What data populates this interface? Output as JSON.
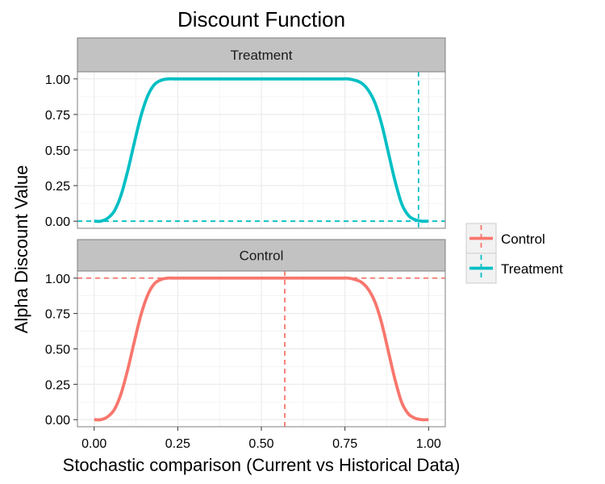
{
  "chart_data": {
    "type": "line",
    "title": "Discount Function",
    "xlabel": "Stochastic comparison (Current vs Historical Data)",
    "ylabel": "Alpha Discount Value",
    "xlim": [
      -0.05,
      1.05
    ],
    "ylim": [
      -0.05,
      1.05
    ],
    "x_ticks": [
      "0.00",
      "0.25",
      "0.50",
      "0.75",
      "1.00"
    ],
    "y_ticks": [
      "0.00",
      "0.25",
      "0.50",
      "0.75",
      "1.00"
    ],
    "grid": true,
    "legend": {
      "position": "right",
      "entries": [
        "Control",
        "Treatment"
      ]
    },
    "colors": {
      "Control": "#F8766D",
      "Treatment": "#00BFC4"
    },
    "panels": [
      {
        "name": "Treatment",
        "series": [
          {
            "name": "Treatment",
            "x": [
              0.0,
              0.02,
              0.04,
              0.06,
              0.08,
              0.1,
              0.12,
              0.14,
              0.16,
              0.18,
              0.2,
              0.22,
              0.24,
              0.26,
              0.3,
              0.4,
              0.5,
              0.6,
              0.7,
              0.74,
              0.76,
              0.78,
              0.8,
              0.82,
              0.84,
              0.86,
              0.88,
              0.9,
              0.92,
              0.94,
              0.96,
              0.98,
              1.0
            ],
            "values": [
              0.0,
              0.0,
              0.02,
              0.07,
              0.18,
              0.35,
              0.55,
              0.74,
              0.88,
              0.96,
              0.99,
              1.0,
              1.0,
              1.0,
              1.0,
              1.0,
              1.0,
              1.0,
              1.0,
              1.0,
              1.0,
              0.99,
              0.97,
              0.92,
              0.83,
              0.68,
              0.48,
              0.28,
              0.12,
              0.04,
              0.01,
              0.0,
              0.0
            ]
          }
        ],
        "vline": 0.97,
        "hline": 0.0
      },
      {
        "name": "Control",
        "series": [
          {
            "name": "Control",
            "x": [
              0.0,
              0.02,
              0.04,
              0.06,
              0.08,
              0.1,
              0.12,
              0.14,
              0.16,
              0.18,
              0.2,
              0.22,
              0.24,
              0.26,
              0.3,
              0.4,
              0.5,
              0.6,
              0.7,
              0.74,
              0.76,
              0.78,
              0.8,
              0.82,
              0.84,
              0.86,
              0.88,
              0.9,
              0.92,
              0.94,
              0.96,
              0.98,
              1.0
            ],
            "values": [
              0.0,
              0.0,
              0.02,
              0.07,
              0.18,
              0.35,
              0.55,
              0.74,
              0.88,
              0.96,
              0.99,
              1.0,
              1.0,
              1.0,
              1.0,
              1.0,
              1.0,
              1.0,
              1.0,
              1.0,
              1.0,
              0.99,
              0.97,
              0.92,
              0.83,
              0.68,
              0.48,
              0.28,
              0.12,
              0.04,
              0.01,
              0.0,
              0.0
            ]
          }
        ],
        "vline": 0.57,
        "hline": 1.0
      }
    ]
  }
}
